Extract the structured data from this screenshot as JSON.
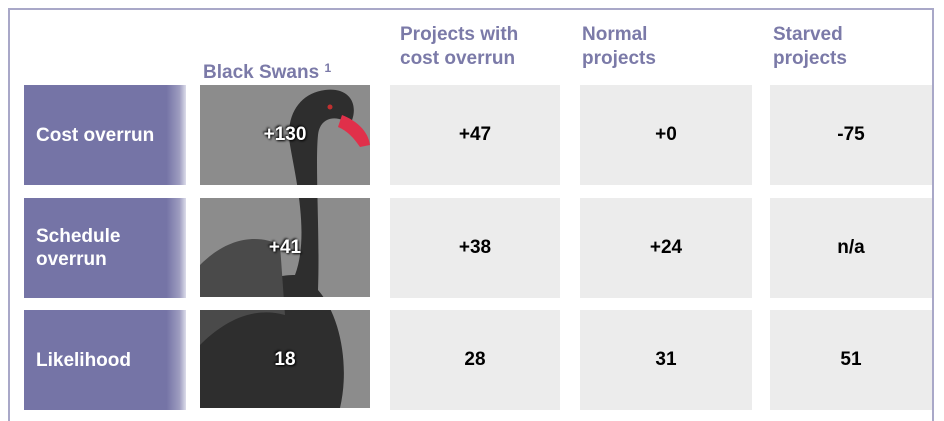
{
  "header": {
    "columns": [
      {
        "label": "Black Swans",
        "note": "1"
      },
      {
        "label": "Projects with cost overrun"
      },
      {
        "label": "Normal projects"
      },
      {
        "label": "Starved projects"
      }
    ]
  },
  "table": {
    "rows": [
      {
        "label": "Cost overrun",
        "cells": [
          "+130",
          "+47",
          "+0",
          "-75"
        ]
      },
      {
        "label": "Schedule overrun",
        "cells": [
          "+41",
          "+38",
          "+24",
          "n/a"
        ]
      },
      {
        "label": "Likelihood",
        "cells": [
          "18",
          "28",
          "31",
          "51"
        ]
      }
    ]
  }
}
